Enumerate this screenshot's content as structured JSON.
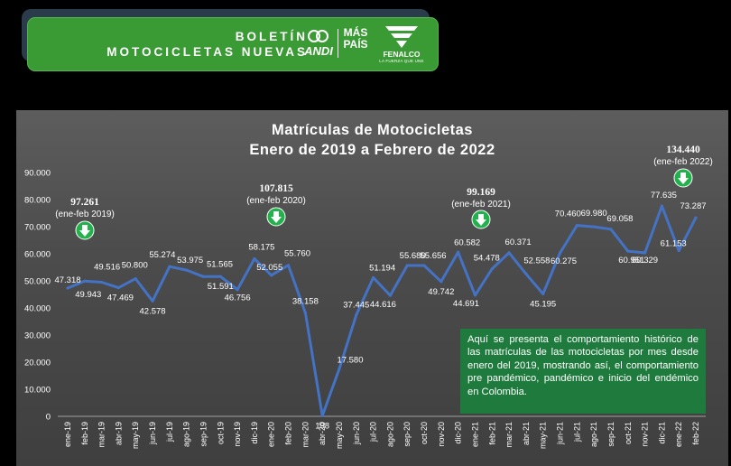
{
  "header": {
    "line1": "BOLETÍN",
    "line2": "MOTOCICLETAS NUEVAS",
    "logo_andi": "ANDI",
    "logo_mas_1": "MÁS",
    "logo_mas_2": "PAÍS",
    "logo_fenalco": "FENALCO",
    "logo_fenalco_tag": "LA FUERZA QUE UNE"
  },
  "note": "Aquí se presenta el comportamiento histórico de las matrículas de las motocicletas por mes desde enero del 2019, mostrando así, el comportamiento pre pandémico, pandémico e inicio del endémico en Colombia.",
  "colors": {
    "line": "#4472c4",
    "banner": "#3a9b35",
    "note_bg": "#1f7a3d",
    "arrow": "#22b14c"
  },
  "chart_data": {
    "type": "line",
    "title": "Matrículas de Motocicletas",
    "subtitle": "Enero de 2019 a Febrero de 2022",
    "xlabel": "",
    "ylabel": "",
    "ylim": [
      0,
      90000
    ],
    "yticks": [
      "0",
      "10.000",
      "20.000",
      "30.000",
      "40.000",
      "50.000",
      "60.000",
      "70.000",
      "80.000",
      "90.000"
    ],
    "grid": false,
    "categories": [
      "ene-19",
      "feb-19",
      "mar-19",
      "abr-19",
      "may-19",
      "jun-19",
      "jul-19",
      "ago-19",
      "sep-19",
      "oct-19",
      "nov-19",
      "dic-19",
      "ene-20",
      "feb-20",
      "mar-20",
      "abr-20",
      "may-20",
      "jun-20",
      "jul-20",
      "ago-20",
      "sep-20",
      "oct-20",
      "nov-20",
      "dic-20",
      "ene-21",
      "feb-21",
      "mar-21",
      "abr-21",
      "may-21",
      "jun-21",
      "jul-21",
      "ago-21",
      "sep-21",
      "oct-21",
      "nov-21",
      "dic-21",
      "ene-22",
      "feb-22"
    ],
    "values": [
      47318,
      49943,
      49516,
      47469,
      50800,
      42578,
      55274,
      53975,
      51565,
      51591,
      46756,
      58175,
      52055,
      55760,
      38158,
      198,
      17580,
      37445,
      51194,
      44616,
      55680,
      55656,
      49742,
      60582,
      44691,
      54478,
      60371,
      52558,
      45195,
      60275,
      70460,
      69980,
      69058,
      60951,
      60329,
      77635,
      61153,
      73287
    ],
    "labels": [
      "47.318",
      "49.943",
      "49.516",
      "47.469",
      "50.800",
      "42.578",
      "55.274",
      "53.975",
      "51.565",
      "51.591",
      "46.756",
      "58.175",
      "52.055",
      "55.760",
      "38.158",
      "198",
      "17.580",
      "37.445",
      "51.194",
      "44.616",
      "55.680",
      "55.656",
      "49.742",
      "60.582",
      "44.691",
      "54.478",
      "60.371",
      "52.558",
      "45.195",
      "60.275",
      "70.460",
      "69.980",
      "69.058",
      "60.951",
      "60.329",
      "77.635",
      "61.153",
      "73.287"
    ],
    "callouts": [
      {
        "value": "97.261",
        "period": "(ene-feb 2019)"
      },
      {
        "value": "107.815",
        "period": "(ene-feb 2020)"
      },
      {
        "value": "99.169",
        "period": "(ene-feb 2021)"
      },
      {
        "value": "134.440",
        "period": "(ene-feb 2022)"
      }
    ]
  }
}
